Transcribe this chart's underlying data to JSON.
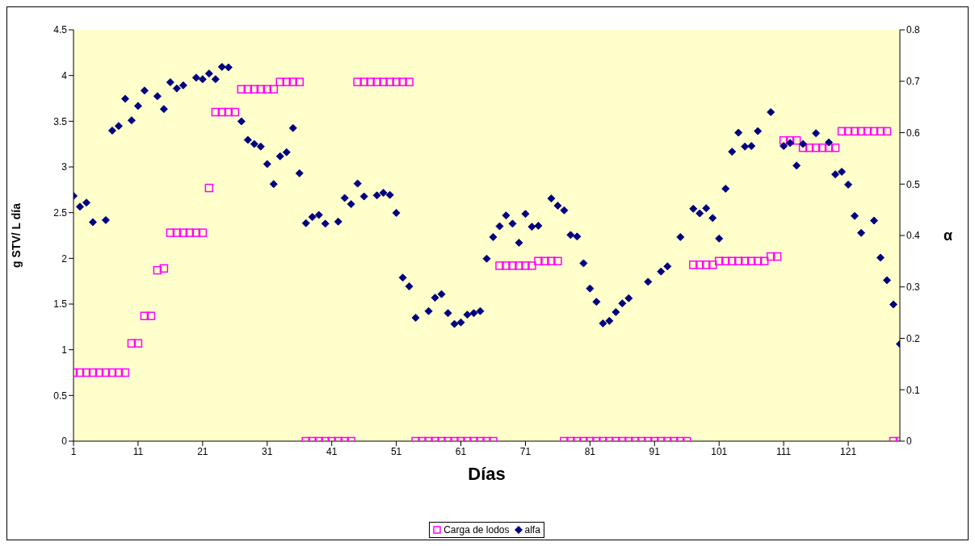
{
  "chart_data": {
    "type": "scatter",
    "xlabel": "Días",
    "ylabel": "g STV/ L día",
    "y2label": "α",
    "x": [
      1,
      2,
      3,
      4,
      5,
      6,
      7,
      8,
      9,
      10,
      11,
      12,
      13,
      14,
      15,
      16,
      17,
      18,
      19,
      20,
      21,
      22,
      23,
      24,
      25,
      26,
      27,
      28,
      29,
      30,
      31,
      32,
      33,
      34,
      35,
      36,
      37,
      38,
      39,
      40,
      41,
      42,
      43,
      44,
      45,
      46,
      47,
      48,
      49,
      50,
      51,
      52,
      53,
      54,
      55,
      56,
      57,
      58,
      59,
      60,
      61,
      62,
      63,
      64,
      65,
      66,
      67,
      68,
      69,
      70,
      71,
      72,
      73,
      74,
      75,
      76,
      77,
      78,
      79,
      80,
      81,
      82,
      83,
      84,
      85,
      86,
      87,
      88,
      89,
      90,
      91,
      92,
      93,
      94,
      95,
      96,
      97,
      98,
      99,
      100,
      101,
      102,
      103,
      104,
      105,
      106,
      107,
      108,
      109,
      110,
      111,
      112,
      113,
      114,
      115,
      116,
      117,
      118,
      119,
      120,
      121,
      122,
      123,
      124,
      125,
      126,
      127,
      128,
      129
    ],
    "xlim": [
      1,
      129
    ],
    "xticks": [
      1,
      11,
      21,
      31,
      41,
      51,
      61,
      71,
      81,
      91,
      101,
      111,
      121
    ],
    "ylim": [
      0,
      4.5
    ],
    "yticks": [
      0,
      0.5,
      1,
      1.5,
      2,
      2.5,
      3,
      3.5,
      4,
      4.5
    ],
    "y2lim": [
      0,
      0.8
    ],
    "y2ticks": [
      0,
      0.1,
      0.2,
      0.3,
      0.4,
      0.5,
      0.6,
      0.7,
      0.8
    ],
    "grid": false,
    "legend": "bottom",
    "series": [
      {
        "name": "Carga de lodos",
        "color": "#ff00ff",
        "marker": "square",
        "values": [
          0.75,
          0.75,
          0.75,
          0.75,
          0.75,
          0.75,
          0.75,
          0.75,
          0.75,
          1.07,
          1.07,
          1.37,
          1.37,
          1.87,
          1.89,
          2.28,
          2.28,
          2.28,
          2.28,
          2.28,
          2.28,
          2.77,
          3.6,
          3.6,
          3.6,
          3.6,
          3.85,
          3.85,
          3.85,
          3.85,
          3.85,
          3.85,
          3.93,
          3.93,
          3.93,
          3.93,
          0,
          0,
          0,
          0,
          0,
          0,
          0,
          0,
          3.93,
          3.93,
          3.93,
          3.93,
          3.93,
          3.93,
          3.93,
          3.93,
          3.93,
          0,
          0,
          0,
          0,
          0,
          0,
          0,
          0,
          0,
          0,
          0,
          0,
          0,
          1.92,
          1.92,
          1.92,
          1.92,
          1.92,
          1.92,
          1.97,
          1.97,
          1.97,
          1.97,
          0,
          0,
          0,
          0,
          0,
          0,
          0,
          0,
          0,
          0,
          0,
          0,
          0,
          0,
          0,
          0,
          0,
          0,
          0,
          0,
          1.93,
          1.93,
          1.93,
          1.93,
          1.97,
          1.97,
          1.97,
          1.97,
          1.97,
          1.97,
          1.97,
          1.97,
          2.02,
          2.02,
          3.29,
          3.29,
          3.29,
          3.21,
          3.21,
          3.21,
          3.21,
          3.21,
          3.21,
          3.39,
          3.39,
          3.39,
          3.39,
          3.39,
          3.39,
          3.39,
          3.39,
          0,
          0
        ]
      },
      {
        "name": "alfa",
        "color": "#000080",
        "marker": "diamond",
        "axis": "y2",
        "values": [
          0.477,
          0.456,
          0.464,
          0.426,
          null,
          0.43,
          0.604,
          0.613,
          0.666,
          0.624,
          0.652,
          0.682,
          null,
          0.671,
          0.646,
          0.698,
          0.686,
          0.692,
          null,
          0.707,
          0.704,
          0.715,
          0.704,
          0.728,
          0.727,
          null,
          0.622,
          0.586,
          0.578,
          0.573,
          0.539,
          0.5,
          0.554,
          0.562,
          0.609,
          0.521,
          0.424,
          0.436,
          0.44,
          0.423,
          null,
          0.427,
          0.473,
          0.461,
          0.501,
          0.476,
          null,
          0.478,
          0.483,
          0.479,
          0.444,
          0.318,
          0.301,
          0.24,
          null,
          0.253,
          0.279,
          0.286,
          0.249,
          0.228,
          0.231,
          0.246,
          0.249,
          0.253,
          0.355,
          0.397,
          0.418,
          0.439,
          0.423,
          0.386,
          0.442,
          0.417,
          0.419,
          null,
          0.472,
          0.458,
          0.449,
          0.401,
          0.398,
          0.346,
          0.297,
          0.271,
          0.229,
          0.234,
          0.251,
          0.268,
          0.278,
          null,
          null,
          0.31,
          null,
          0.33,
          0.34,
          null,
          0.397,
          null,
          0.452,
          0.443,
          0.453,
          0.434,
          0.394,
          0.491,
          0.563,
          0.6,
          0.573,
          0.574,
          0.603,
          null,
          0.64,
          null,
          0.574,
          0.58,
          0.536,
          0.578,
          null,
          0.599,
          null,
          0.581,
          0.519,
          0.524,
          0.499,
          0.438,
          0.405,
          null,
          0.429,
          0.357,
          0.313,
          0.266,
          0.189
        ]
      }
    ]
  }
}
